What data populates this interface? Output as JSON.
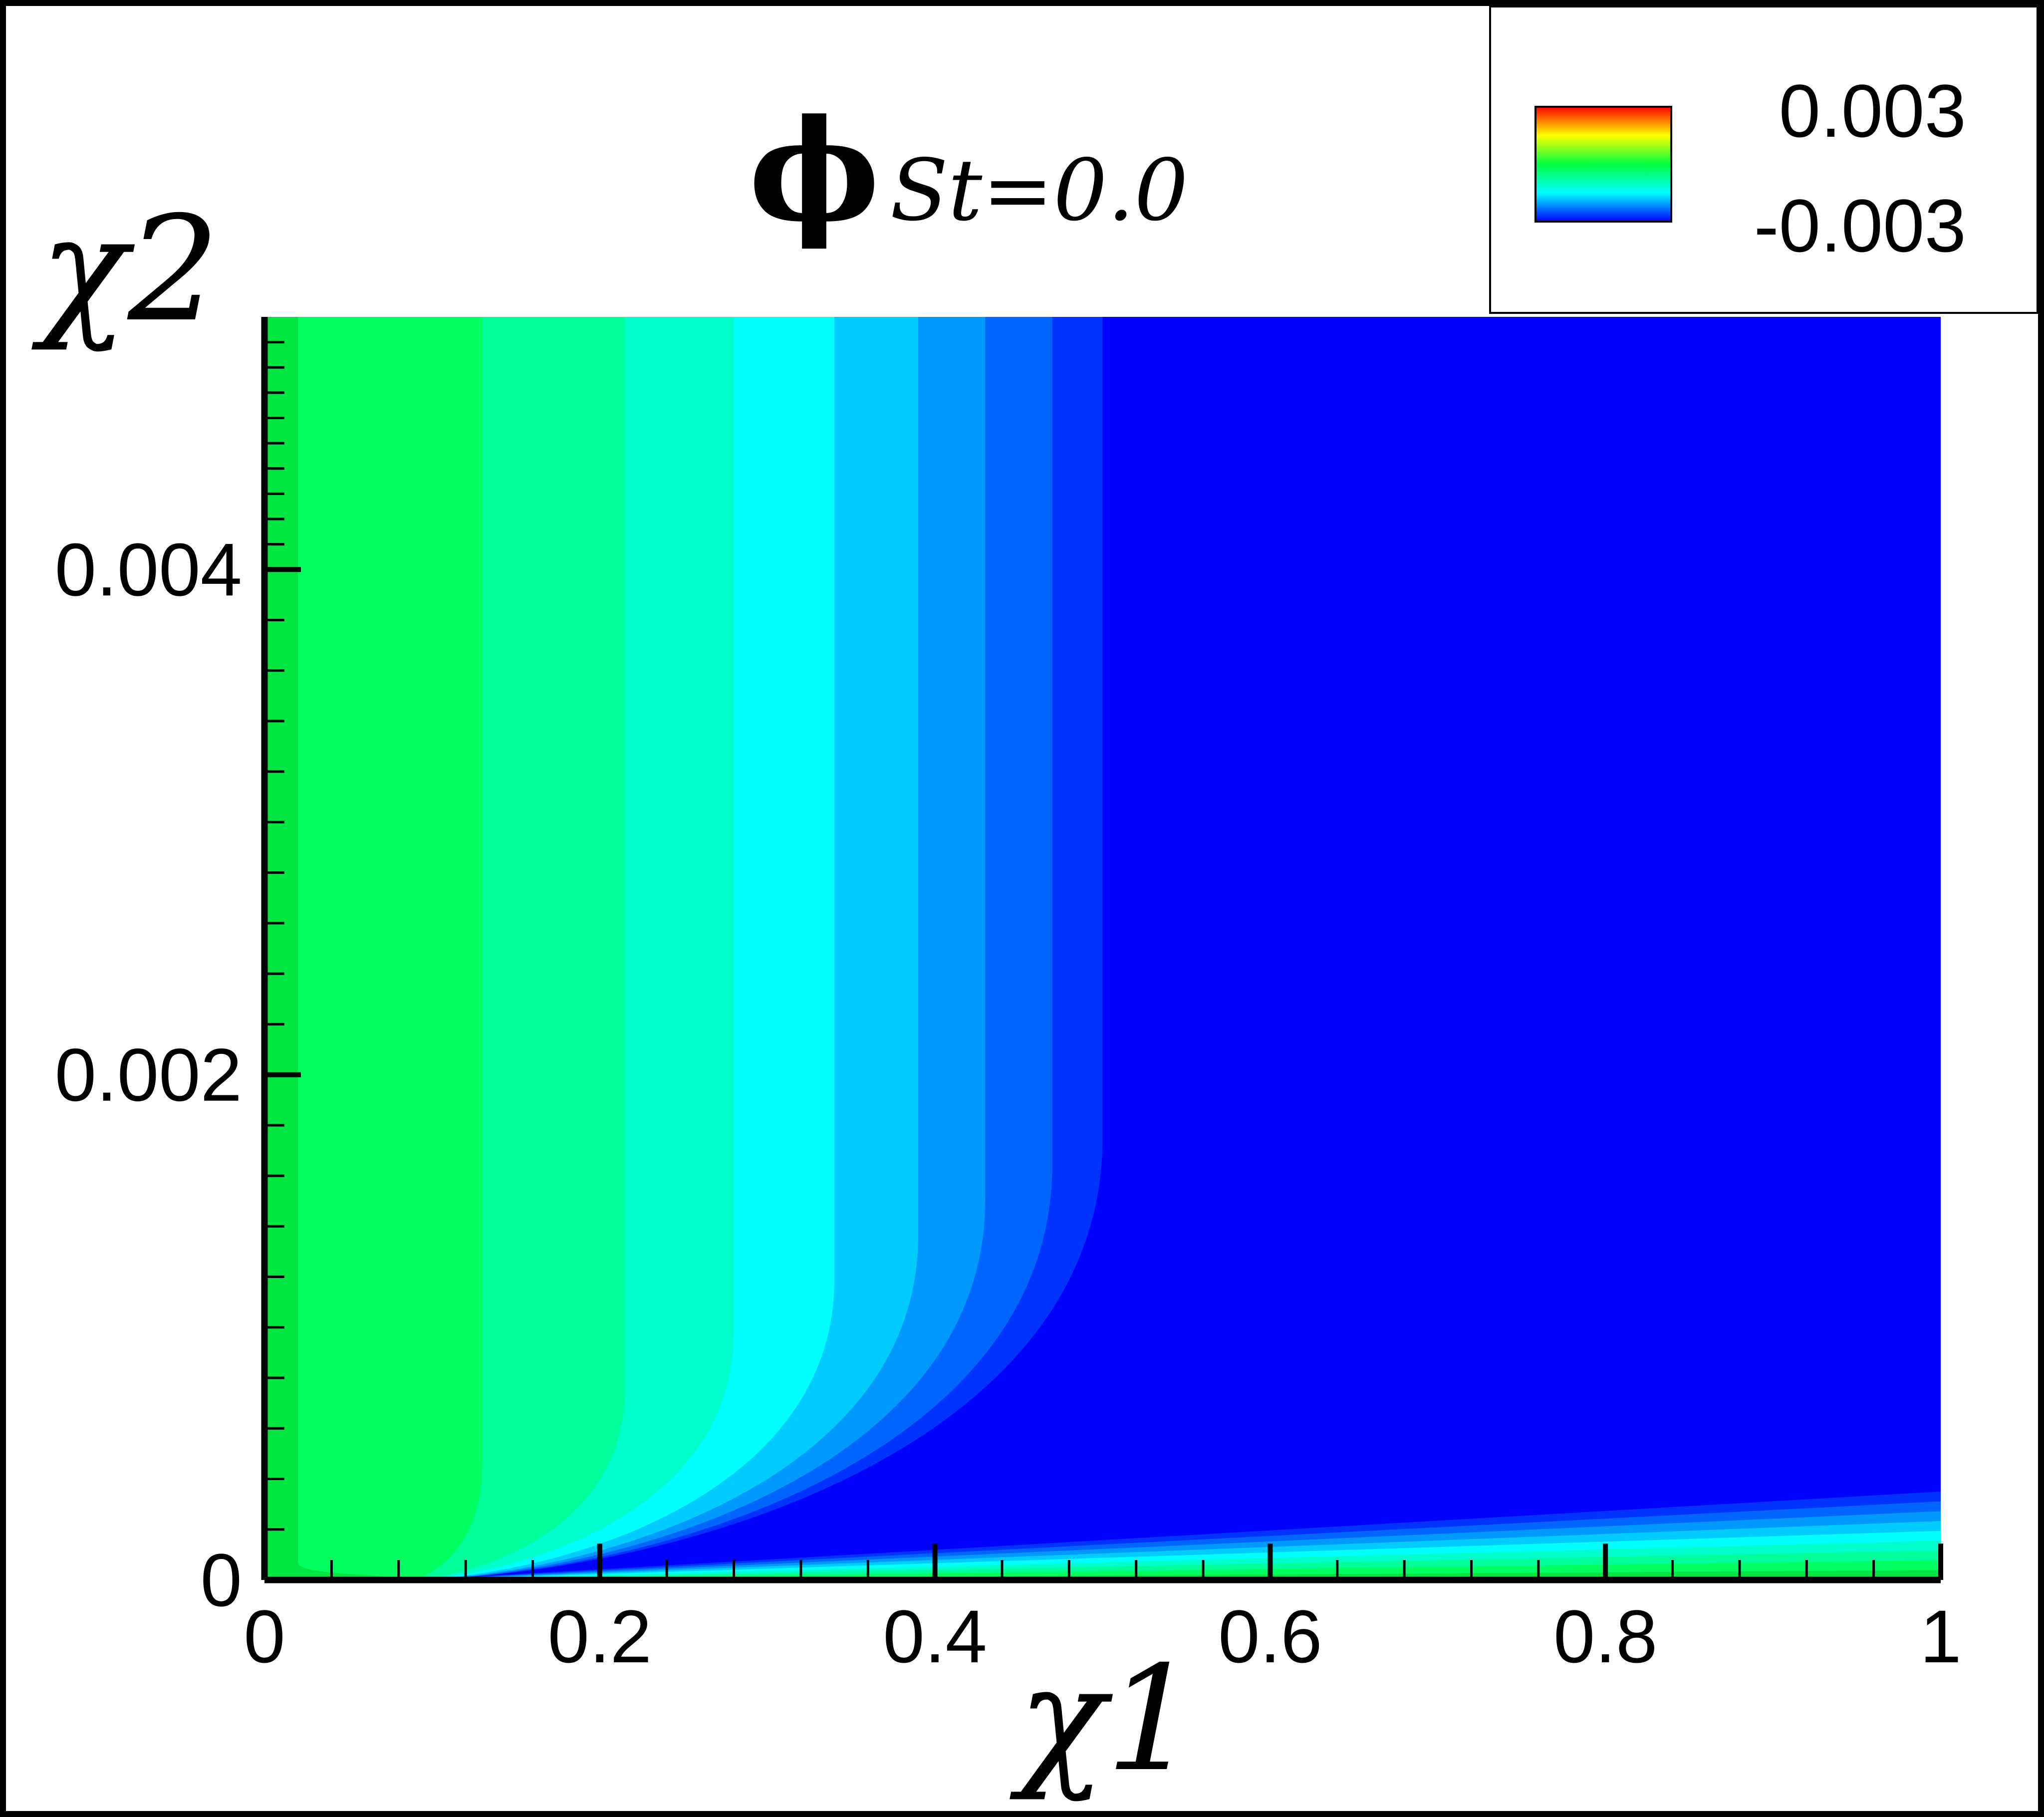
{
  "chart_data": {
    "type": "contour",
    "title": "ϕ",
    "title_subscript": "St=0.0",
    "xlabel": "χ1",
    "ylabel": "χ2",
    "xlim": [
      0,
      1
    ],
    "ylim": [
      0,
      0.005
    ],
    "xticks": [
      0,
      0.2,
      0.4,
      0.6,
      0.8,
      1
    ],
    "yticks": [
      0,
      0.002,
      0.004
    ],
    "colorbar_ticks": [
      0.003,
      -0.003
    ],
    "contours": [
      {
        "level": -0.0003,
        "color": "#00e640",
        "x": 0
      },
      {
        "level": -0.0006,
        "color": "#00ff60",
        "x": 0.02
      },
      {
        "level": -0.0009,
        "color": "#00ff9a",
        "x": 0.13
      },
      {
        "level": -0.0012,
        "color": "#00ffcc",
        "x": 0.215
      },
      {
        "level": -0.0015,
        "color": "#00ffff",
        "x": 0.28
      },
      {
        "level": -0.0018,
        "color": "#00ccff",
        "x": 0.34
      },
      {
        "level": -0.0021,
        "color": "#0099ff",
        "x": 0.39
      },
      {
        "level": -0.0024,
        "color": "#0066ff",
        "x": 0.43
      },
      {
        "level": -0.0027,
        "color": "#0033ff",
        "x": 0.47
      },
      {
        "level": -0.003,
        "color": "#0000ff",
        "x": 0.5
      }
    ]
  }
}
